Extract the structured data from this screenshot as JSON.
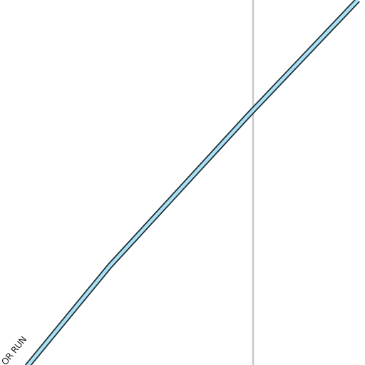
{
  "map": {
    "background_color": "#ffffff",
    "route": {
      "name_label": "OR RUN",
      "fill_color": "#a9e0f4",
      "casing_color": "#1f2d33",
      "label_color": "#222222"
    },
    "boundary_line": {
      "color": "#c8c8c8"
    }
  }
}
